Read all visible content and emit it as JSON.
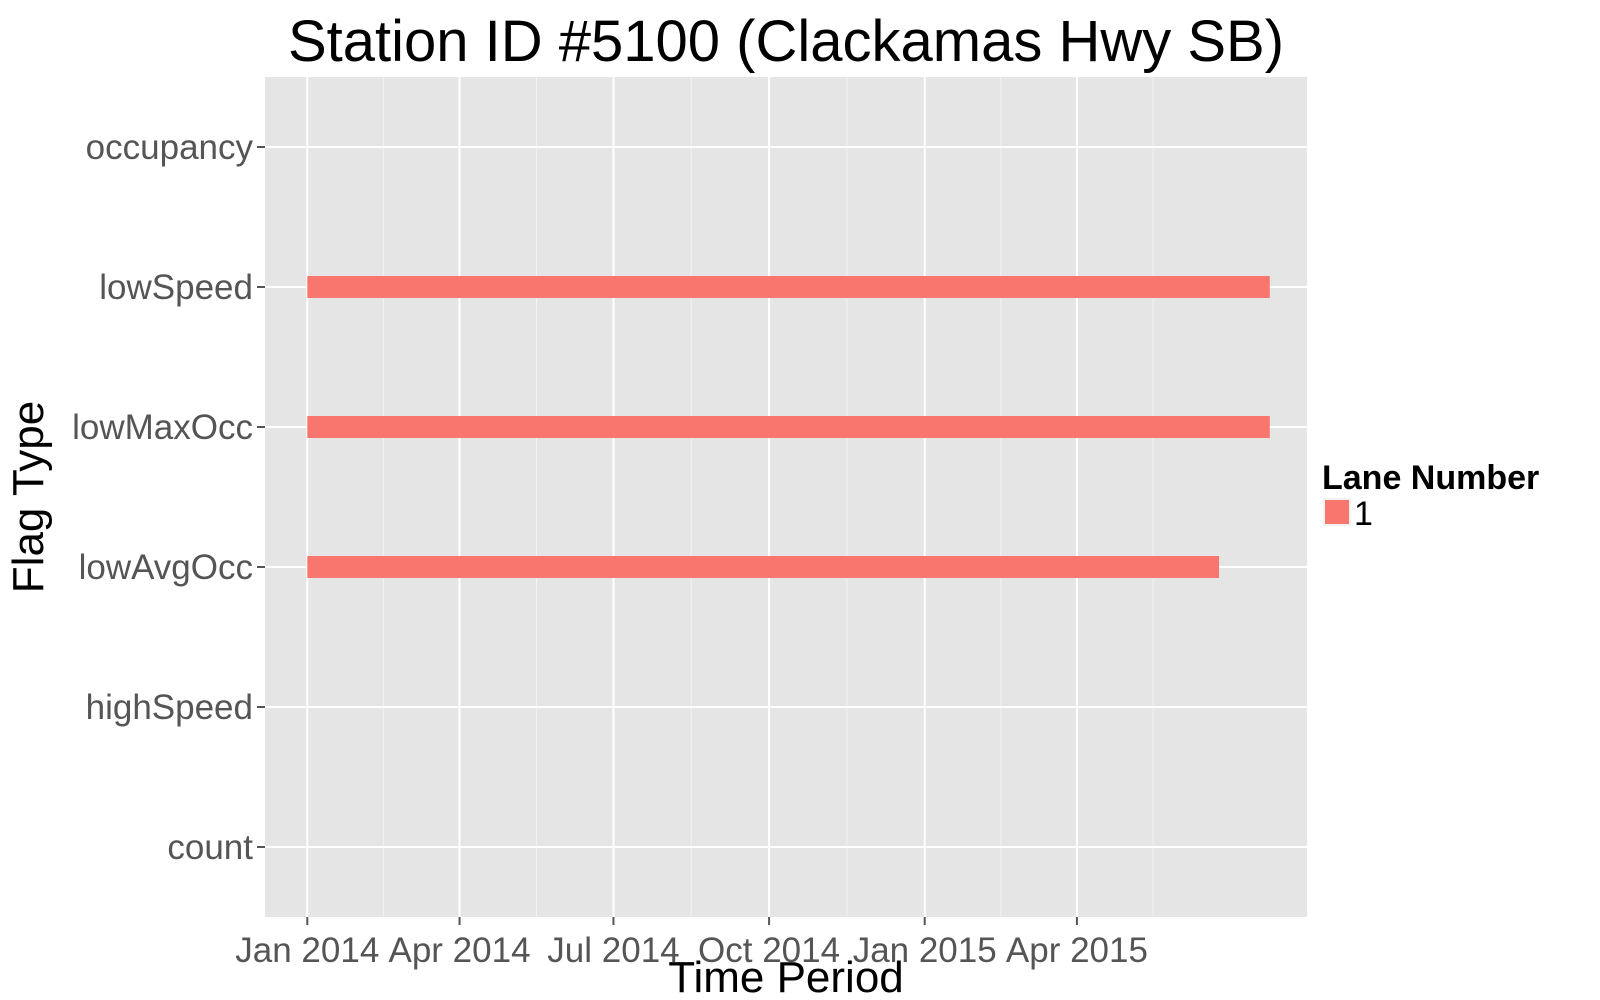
{
  "chart_data": {
    "type": "bar",
    "subtype": "horizontal-range",
    "title": "Station ID #5100 (Clackamas Hwy SB)",
    "xlabel": "Time Period",
    "ylabel": "Flag Type",
    "categories": [
      "occupancy",
      "lowSpeed",
      "lowMaxOcc",
      "lowAvgOcc",
      "highSpeed",
      "count"
    ],
    "x_ticks": [
      {
        "date": "2014-01-01",
        "label": "Jan 2014"
      },
      {
        "date": "2014-04-01",
        "label": "Apr 2014"
      },
      {
        "date": "2014-07-01",
        "label": "Jul 2014"
      },
      {
        "date": "2014-10-01",
        "label": "Oct 2014"
      },
      {
        "date": "2015-01-01",
        "label": "Jan 2015"
      },
      {
        "date": "2015-04-01",
        "label": "Apr 2015"
      }
    ],
    "x_range": [
      "2013-12-07",
      "2015-08-15"
    ],
    "series": [
      {
        "name": "1",
        "color": "#F8766D",
        "segments": [
          {
            "category": "lowSpeed",
            "start": "2014-01-01",
            "end": "2015-07-24"
          },
          {
            "category": "lowMaxOcc",
            "start": "2014-01-01",
            "end": "2015-07-24"
          },
          {
            "category": "lowAvgOcc",
            "start": "2014-01-01",
            "end": "2015-06-24"
          }
        ]
      }
    ],
    "legend": {
      "title": "Lane Number",
      "position": "right"
    },
    "grid": true
  }
}
